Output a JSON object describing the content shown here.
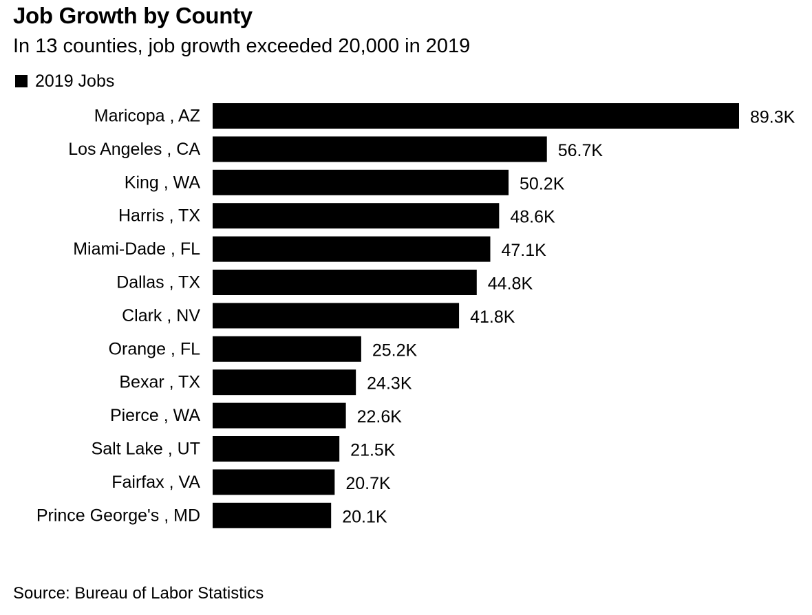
{
  "header": {
    "title": "Job Growth by County",
    "subtitle": "In 13 counties, job growth exceeded 20,000 in 2019"
  },
  "legend": {
    "label": "2019 Jobs",
    "color": "#000000"
  },
  "source": "Source: Bureau of Labor Statistics",
  "chart_data": {
    "type": "bar",
    "orientation": "horizontal",
    "title": "Job Growth by County",
    "subtitle": "In 13 counties, job growth exceeded 20,000 in 2019",
    "legend_position": "top-left",
    "grid": false,
    "xlim": [
      0,
      89.3
    ],
    "bar_color": "#000000",
    "categories": [
      "Maricopa , AZ",
      "Los Angeles , CA",
      "King , WA",
      "Harris , TX",
      "Miami-Dade , FL",
      "Dallas , TX",
      "Clark , NV",
      "Orange , FL",
      "Bexar , TX",
      "Pierce , WA",
      "Salt Lake , UT",
      "Fairfax , VA",
      "Prince George's , MD"
    ],
    "series": [
      {
        "name": "2019 Jobs",
        "values": [
          89.3,
          56.7,
          50.2,
          48.6,
          47.1,
          44.8,
          41.8,
          25.2,
          24.3,
          22.6,
          21.5,
          20.7,
          20.1
        ],
        "labels": [
          "89.3K",
          "56.7K",
          "50.2K",
          "48.6K",
          "47.1K",
          "44.8K",
          "41.8K",
          "25.2K",
          "24.3K",
          "22.6K",
          "21.5K",
          "20.7K",
          "20.1K"
        ]
      }
    ]
  }
}
